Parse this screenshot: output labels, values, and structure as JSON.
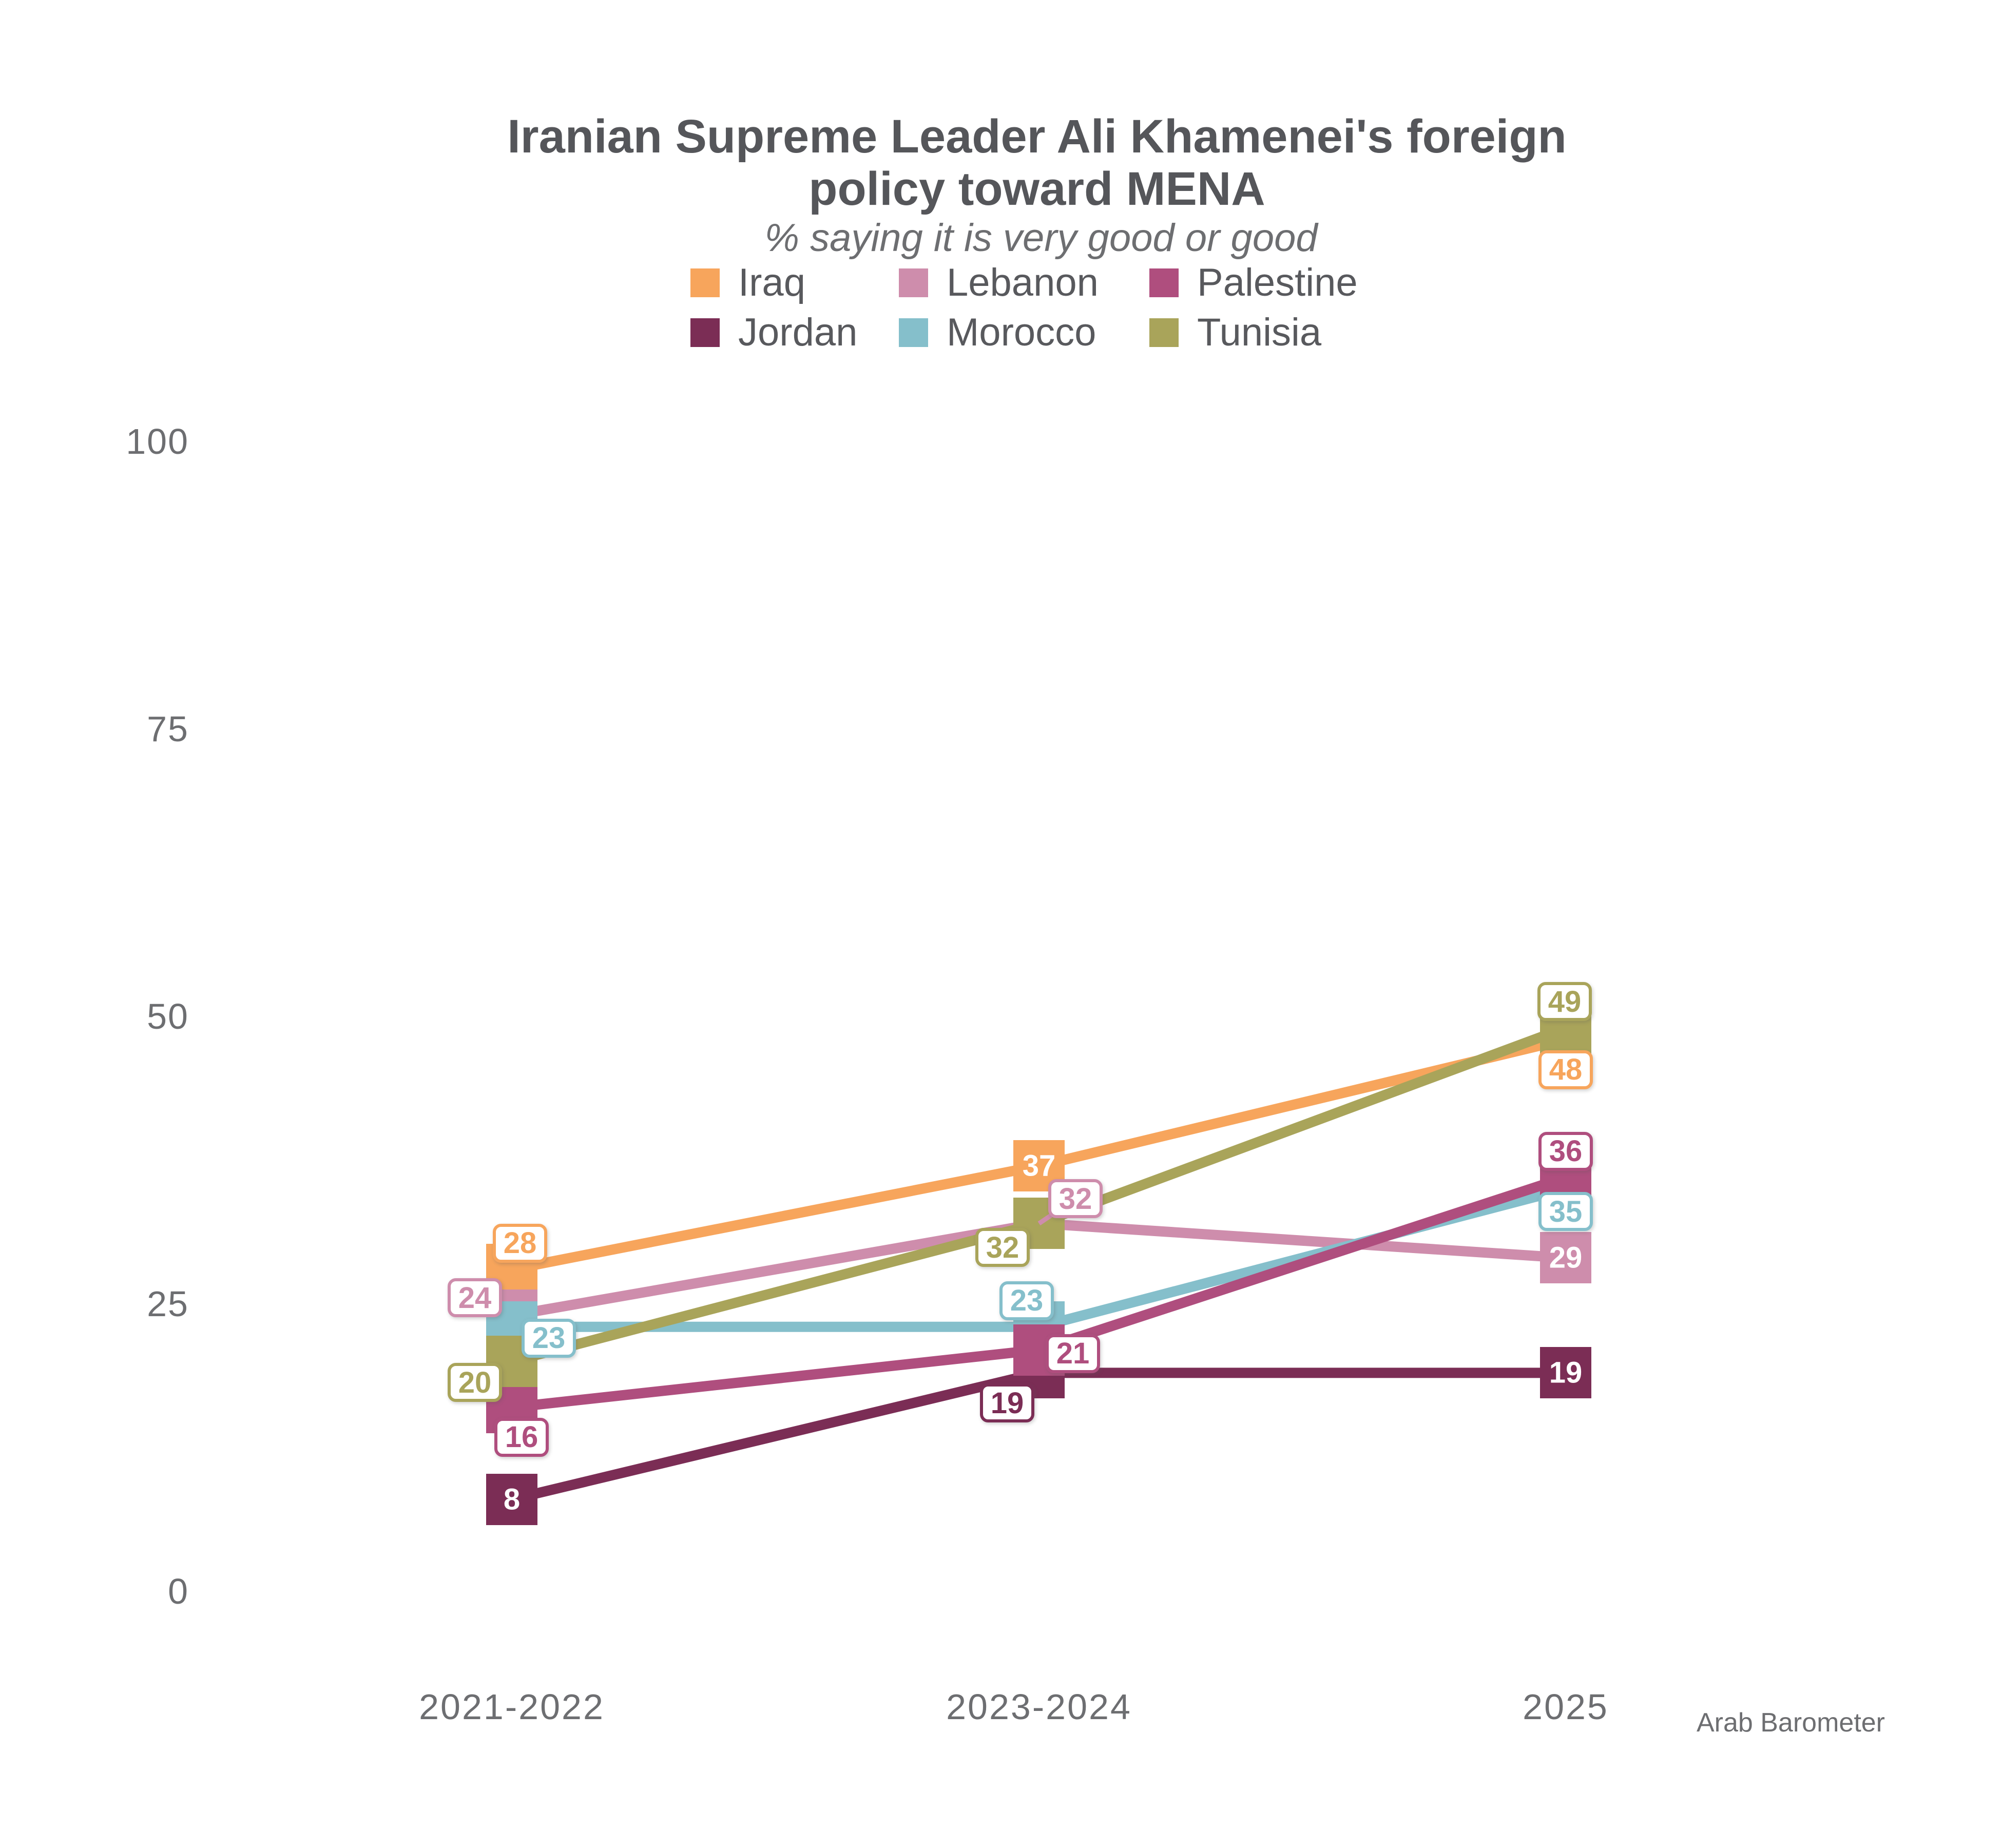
{
  "header": {
    "title_line1": "Iranian Supreme Leader Ali Khamenei's foreign",
    "title_line2": "policy toward MENA",
    "subtitle": "% saying it is very good or good"
  },
  "source_label": "Arab Barometer",
  "text_colors": {
    "title": "#55565A",
    "subtitle": "#6D6E71",
    "axis": "#6D6E71",
    "legend": "#58595D"
  },
  "legend": {
    "rows": [
      [
        "Iraq",
        "Lebanon",
        "Palestine"
      ],
      [
        "Jordan",
        "Morocco",
        "Tunisia"
      ]
    ]
  },
  "chart_data": {
    "type": "line",
    "title": "Iranian Supreme Leader Ali Khamenei's foreign policy toward MENA",
    "subtitle": "% saying it is very good or good",
    "categories": [
      "2021-2022",
      "2023-2024",
      "2025"
    ],
    "series": [
      {
        "name": "Iraq",
        "color": "#F7A55C",
        "values": [
          28,
          37,
          48
        ]
      },
      {
        "name": "Jordan",
        "color": "#7B2D55",
        "values": [
          8,
          19,
          19
        ]
      },
      {
        "name": "Lebanon",
        "color": "#CE8DAC",
        "values": [
          24,
          32,
          29
        ]
      },
      {
        "name": "Morocco",
        "color": "#85BFCB",
        "values": [
          23,
          23,
          35
        ]
      },
      {
        "name": "Palestine",
        "color": "#AF4E7E",
        "values": [
          16,
          21,
          36
        ]
      },
      {
        "name": "Tunisia",
        "color": "#A9A45A",
        "values": [
          20,
          32,
          49
        ]
      }
    ],
    "xlabel": "",
    "ylabel": "",
    "ylim": [
      0,
      100
    ],
    "yticks": [
      0,
      25,
      50,
      75,
      100
    ],
    "grid": false,
    "legend_position": "top",
    "marker": "square",
    "point_labels": true,
    "source": "Arab Barometer"
  }
}
